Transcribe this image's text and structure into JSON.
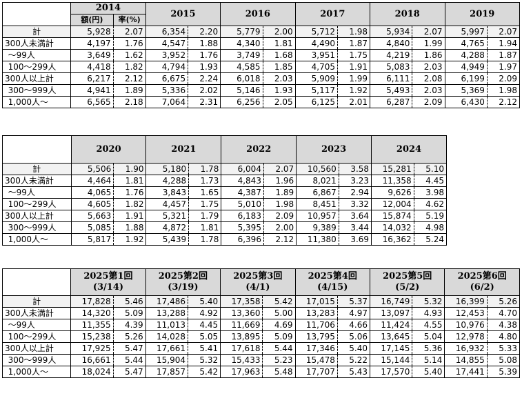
{
  "row_labels": {
    "total": "計",
    "under300": "300人未満計",
    "r_99": "～99人",
    "r_100_299": "100～299人",
    "over300": "300人以上計",
    "r_300_999": "300～999人",
    "r_1000": "1,000人～"
  },
  "sub_headers": {
    "amount": "額(円)",
    "rate": "率(%)"
  },
  "table1": {
    "columns": [
      "2014",
      "2015",
      "2016",
      "2017",
      "2018",
      "2019"
    ],
    "rows": {
      "total": [
        [
          "5,928",
          "2.07"
        ],
        [
          "6,354",
          "2.20"
        ],
        [
          "5,779",
          "2.00"
        ],
        [
          "5,712",
          "1.98"
        ],
        [
          "5,934",
          "2.07"
        ],
        [
          "5,997",
          "2.07"
        ]
      ],
      "under300": [
        [
          "4,197",
          "1.76"
        ],
        [
          "4,547",
          "1.88"
        ],
        [
          "4,340",
          "1.81"
        ],
        [
          "4,490",
          "1.87"
        ],
        [
          "4,840",
          "1.99"
        ],
        [
          "4,765",
          "1.94"
        ]
      ],
      "r_99": [
        [
          "3,649",
          "1.62"
        ],
        [
          "3,952",
          "1.76"
        ],
        [
          "3,749",
          "1.68"
        ],
        [
          "3,951",
          "1.75"
        ],
        [
          "4,219",
          "1.86"
        ],
        [
          "4,288",
          "1.87"
        ]
      ],
      "r_100_299": [
        [
          "4,418",
          "1.82"
        ],
        [
          "4,794",
          "1.93"
        ],
        [
          "4,585",
          "1.85"
        ],
        [
          "4,705",
          "1.91"
        ],
        [
          "5,083",
          "2.03"
        ],
        [
          "4,949",
          "1.97"
        ]
      ],
      "over300": [
        [
          "6,217",
          "2.12"
        ],
        [
          "6,675",
          "2.24"
        ],
        [
          "6,018",
          "2.03"
        ],
        [
          "5,909",
          "1.99"
        ],
        [
          "6,111",
          "2.08"
        ],
        [
          "6,199",
          "2.09"
        ]
      ],
      "r_300_999": [
        [
          "4,941",
          "1.89"
        ],
        [
          "5,336",
          "2.02"
        ],
        [
          "5,146",
          "1.93"
        ],
        [
          "5,117",
          "1.92"
        ],
        [
          "5,493",
          "2.03"
        ],
        [
          "5,369",
          "1.98"
        ]
      ],
      "r_1000": [
        [
          "6,565",
          "2.18"
        ],
        [
          "7,064",
          "2.31"
        ],
        [
          "6,256",
          "2.05"
        ],
        [
          "6,125",
          "2.01"
        ],
        [
          "6,287",
          "2.09"
        ],
        [
          "6,430",
          "2.12"
        ]
      ]
    }
  },
  "table2": {
    "columns": [
      "2020",
      "2021",
      "2022",
      "2023",
      "2024"
    ],
    "rows": {
      "total": [
        [
          "5,506",
          "1.90"
        ],
        [
          "5,180",
          "1.78"
        ],
        [
          "6,004",
          "2.07"
        ],
        [
          "10,560",
          "3.58"
        ],
        [
          "15,281",
          "5.10"
        ]
      ],
      "under300": [
        [
          "4,464",
          "1.81"
        ],
        [
          "4,288",
          "1.73"
        ],
        [
          "4,843",
          "1.96"
        ],
        [
          "8,021",
          "3.23"
        ],
        [
          "11,358",
          "4.45"
        ]
      ],
      "r_99": [
        [
          "4,065",
          "1.76"
        ],
        [
          "3,843",
          "1.65"
        ],
        [
          "4,387",
          "1.89"
        ],
        [
          "6,867",
          "2.94"
        ],
        [
          "9,626",
          "3.98"
        ]
      ],
      "r_100_299": [
        [
          "4,605",
          "1.82"
        ],
        [
          "4,457",
          "1.75"
        ],
        [
          "5,010",
          "1.98"
        ],
        [
          "8,451",
          "3.32"
        ],
        [
          "12,004",
          "4.62"
        ]
      ],
      "over300": [
        [
          "5,663",
          "1.91"
        ],
        [
          "5,321",
          "1.79"
        ],
        [
          "6,183",
          "2.09"
        ],
        [
          "10,957",
          "3.64"
        ],
        [
          "15,874",
          "5.19"
        ]
      ],
      "r_300_999": [
        [
          "5,085",
          "1.88"
        ],
        [
          "4,872",
          "1.81"
        ],
        [
          "5,395",
          "2.00"
        ],
        [
          "9,389",
          "3.44"
        ],
        [
          "14,032",
          "4.98"
        ]
      ],
      "r_1000": [
        [
          "5,817",
          "1.92"
        ],
        [
          "5,439",
          "1.78"
        ],
        [
          "6,396",
          "2.12"
        ],
        [
          "11,380",
          "3.69"
        ],
        [
          "16,362",
          "5.24"
        ]
      ]
    }
  },
  "table3": {
    "columns": [
      {
        "title": "2025第1回",
        "date": "(3/14)"
      },
      {
        "title": "2025第2回",
        "date": "(3/19)"
      },
      {
        "title": "2025第3回",
        "date": "(4/1)"
      },
      {
        "title": "2025第4回",
        "date": "(4/15)"
      },
      {
        "title": "2025第5回",
        "date": "(5/2)"
      },
      {
        "title": "2025第6回",
        "date": "(6/2)"
      }
    ],
    "rows": {
      "total": [
        [
          "17,828",
          "5.46"
        ],
        [
          "17,486",
          "5.40"
        ],
        [
          "17,358",
          "5.42"
        ],
        [
          "17,015",
          "5.37"
        ],
        [
          "16,749",
          "5.32"
        ],
        [
          "16,399",
          "5.26"
        ]
      ],
      "under300": [
        [
          "14,320",
          "5.09"
        ],
        [
          "13,288",
          "4.92"
        ],
        [
          "13,360",
          "5.00"
        ],
        [
          "13,283",
          "4.97"
        ],
        [
          "13,097",
          "4.93"
        ],
        [
          "12,453",
          "4.70"
        ]
      ],
      "r_99": [
        [
          "11,355",
          "4.39"
        ],
        [
          "11,013",
          "4.45"
        ],
        [
          "11,669",
          "4.69"
        ],
        [
          "11,706",
          "4.66"
        ],
        [
          "11,424",
          "4.55"
        ],
        [
          "10,976",
          "4.38"
        ]
      ],
      "r_100_299": [
        [
          "15,238",
          "5.26"
        ],
        [
          "14,028",
          "5.05"
        ],
        [
          "13,895",
          "5.09"
        ],
        [
          "13,795",
          "5.06"
        ],
        [
          "13,645",
          "5.04"
        ],
        [
          "12,978",
          "4.80"
        ]
      ],
      "over300": [
        [
          "17,925",
          "5.47"
        ],
        [
          "17,661",
          "5.41"
        ],
        [
          "17,618",
          "5.44"
        ],
        [
          "17,346",
          "5.40"
        ],
        [
          "17,145",
          "5.36"
        ],
        [
          "16,932",
          "5.33"
        ]
      ],
      "r_300_999": [
        [
          "16,661",
          "5.44"
        ],
        [
          "15,904",
          "5.32"
        ],
        [
          "15,433",
          "5.23"
        ],
        [
          "15,478",
          "5.22"
        ],
        [
          "15,144",
          "5.14"
        ],
        [
          "14,855",
          "5.08"
        ]
      ],
      "r_1000": [
        [
          "18,024",
          "5.47"
        ],
        [
          "17,857",
          "5.42"
        ],
        [
          "17,963",
          "5.48"
        ],
        [
          "17,707",
          "5.43"
        ],
        [
          "17,570",
          "5.40"
        ],
        [
          "17,441",
          "5.39"
        ]
      ]
    }
  }
}
